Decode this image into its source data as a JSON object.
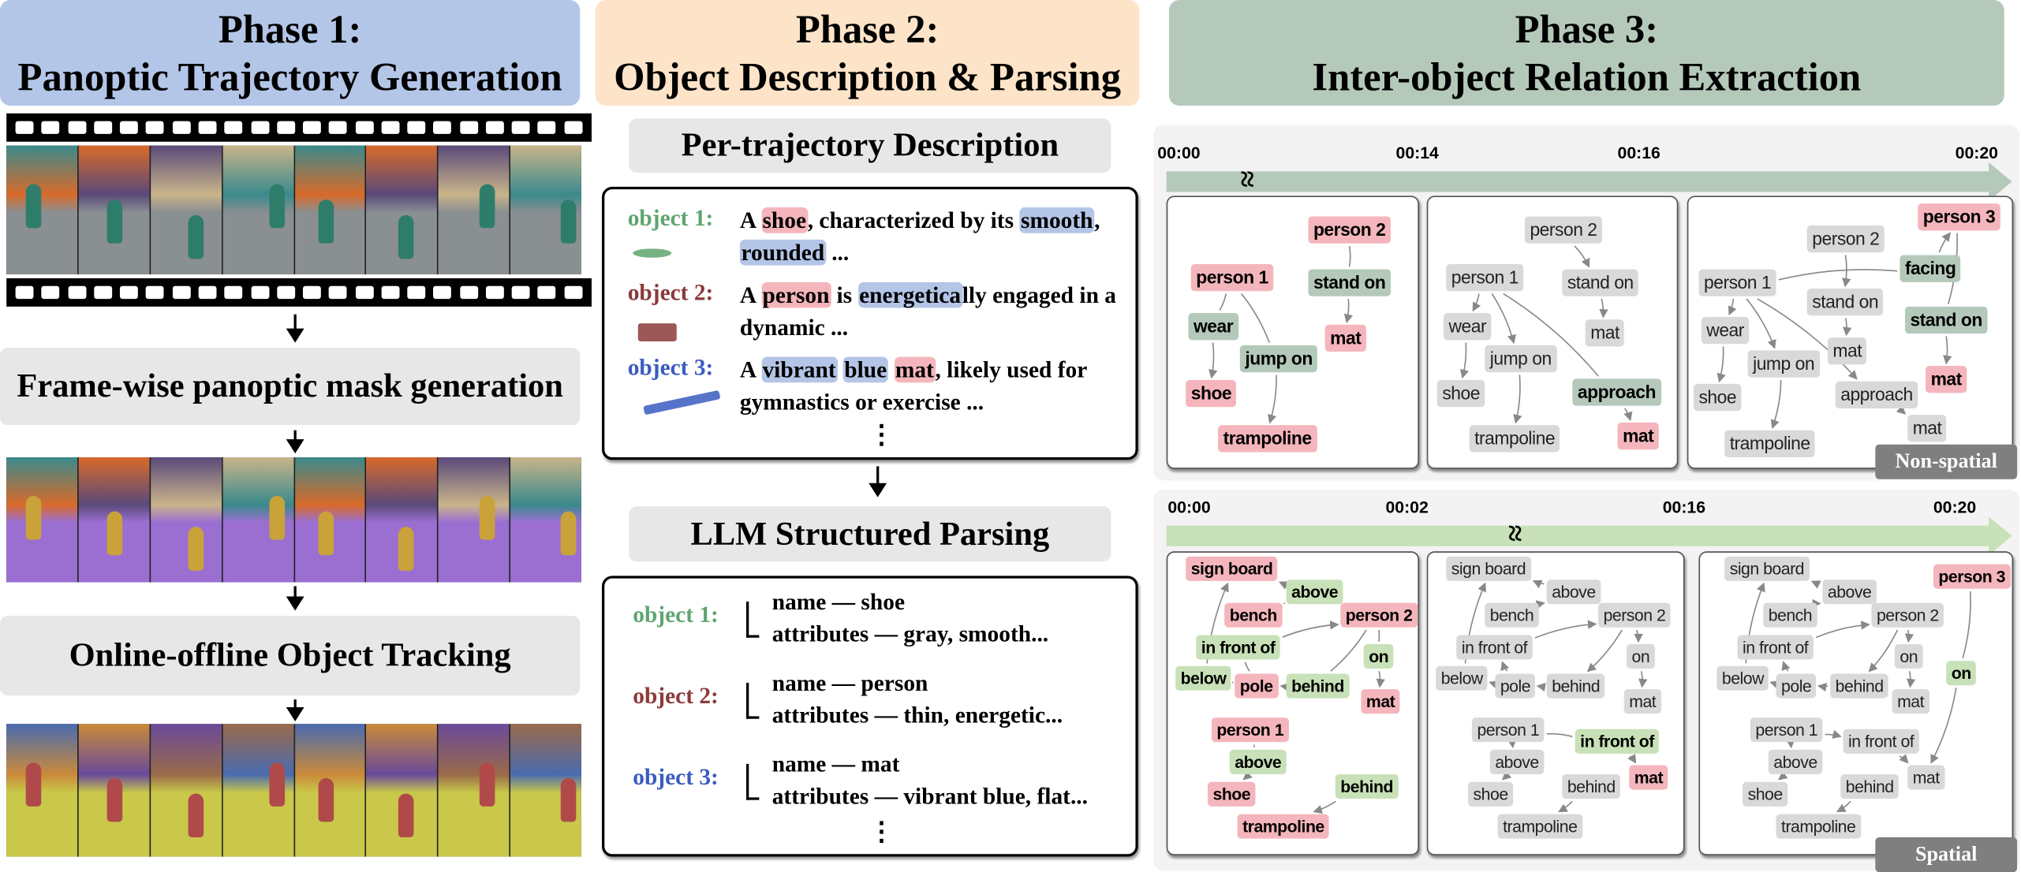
{
  "colors": {
    "phase1": "#b4c6e7",
    "phase2": "#fde4c9",
    "phase3": "#b5c9bb",
    "object_highlight": "#f4b6bc",
    "attribute_highlight": "#b4c6e7",
    "object1": "#5fa56f",
    "object2": "#8b3a3a",
    "object3": "#3a5bc0",
    "timeline_top": "#b5c9bb",
    "timeline_bottom": "#c8e1b8"
  },
  "phase1": {
    "title_line1": "Phase 1:",
    "title_line2": "Panoptic Trajectory Generation",
    "step1": "Frame-wise panoptic mask generation",
    "step2": "Online-offline Object Tracking"
  },
  "phase2": {
    "title_line1": "Phase 2:",
    "title_line2": "Object Description & Parsing",
    "desc_title": "Per-trajectory Description",
    "parse_title": "LLM Structured Parsing",
    "descriptions": [
      {
        "label": "object 1:",
        "lines": [
          [
            {
              "t": "A "
            },
            {
              "t": "shoe",
              "h": "object"
            },
            {
              "t": ", characterized by its "
            },
            {
              "t": "smooth",
              "h": "attribute"
            },
            {
              "t": ","
            }
          ],
          [
            {
              "t": "rounded",
              "h": "attribute"
            },
            {
              "t": " ..."
            }
          ]
        ]
      },
      {
        "label": "object 2:",
        "lines": [
          [
            {
              "t": "A "
            },
            {
              "t": "person",
              "h": "object"
            },
            {
              "t": " is "
            },
            {
              "t": "energetica",
              "h": "attribute"
            },
            {
              "t": "lly engaged in a"
            }
          ],
          [
            {
              "t": "dynamic ..."
            }
          ]
        ]
      },
      {
        "label": "object 3:",
        "lines": [
          [
            {
              "t": "A "
            },
            {
              "t": "vibrant",
              "h": "attribute"
            },
            {
              "t": " "
            },
            {
              "t": "blue",
              "h": "attribute"
            },
            {
              "t": " "
            },
            {
              "t": "mat",
              "h": "object"
            },
            {
              "t": ", likely used for"
            }
          ],
          [
            {
              "t": "gymnastics or exercise ..."
            }
          ]
        ]
      }
    ],
    "ellipsis": "⋮",
    "parsed": [
      {
        "label": "object 1:",
        "name": "name — shoe",
        "attributes": "attributes — gray, smooth..."
      },
      {
        "label": "object 2:",
        "name": "name — person",
        "attributes": "attributes — thin, energetic..."
      },
      {
        "label": "object 3:",
        "name": "name — mat",
        "attributes": "attributes — vibrant blue, flat..."
      }
    ]
  },
  "phase3": {
    "title_line1": "Phase 3:",
    "title_line2": "Inter-object Relation Extraction",
    "break_mark": "≈",
    "timeline_top": [
      "00:00",
      "00:14",
      "00:16",
      "00:20"
    ],
    "timeline_bottom": [
      "00:00",
      "00:02",
      "00:16",
      "00:20"
    ],
    "badge_top": "Non-spatial",
    "badge_bottom": "Spatial",
    "graphs": [
      {
        "nodes": [
          {
            "label": "person 1",
            "state": "object"
          },
          {
            "label": "person 2",
            "state": "object"
          },
          {
            "label": "wear",
            "state": "relation"
          },
          {
            "label": "jump on",
            "state": "relation"
          },
          {
            "label": "stand on",
            "state": "relation"
          },
          {
            "label": "shoe",
            "state": "object"
          },
          {
            "label": "trampoline",
            "state": "object"
          },
          {
            "label": "mat",
            "state": "object"
          }
        ],
        "edges": [
          [
            0,
            2
          ],
          [
            2,
            5
          ],
          [
            0,
            3
          ],
          [
            3,
            6
          ],
          [
            1,
            4
          ],
          [
            4,
            7
          ]
        ]
      },
      {
        "nodes": [
          {
            "label": "person 1",
            "state": "inactive"
          },
          {
            "label": "person 2",
            "state": "inactive"
          },
          {
            "label": "wear",
            "state": "inactive"
          },
          {
            "label": "jump on",
            "state": "inactive"
          },
          {
            "label": "stand on",
            "state": "inactive"
          },
          {
            "label": "shoe",
            "state": "inactive"
          },
          {
            "label": "trampoline",
            "state": "inactive"
          },
          {
            "label": "mat",
            "state": "inactive"
          },
          {
            "label": "approach",
            "state": "relation"
          },
          {
            "label": "mat",
            "state": "object"
          }
        ],
        "edges": [
          [
            0,
            2
          ],
          [
            2,
            5
          ],
          [
            0,
            3
          ],
          [
            3,
            6
          ],
          [
            1,
            4
          ],
          [
            4,
            7
          ],
          [
            0,
            8
          ],
          [
            8,
            9
          ]
        ]
      },
      {
        "nodes": [
          {
            "label": "person 1",
            "state": "inactive"
          },
          {
            "label": "person 2",
            "state": "inactive"
          },
          {
            "label": "person 3",
            "state": "object"
          },
          {
            "label": "facing",
            "state": "relation"
          },
          {
            "label": "wear",
            "state": "inactive"
          },
          {
            "label": "jump on",
            "state": "inactive"
          },
          {
            "label": "stand on",
            "state": "inactive"
          },
          {
            "label": "stand on",
            "state": "relation"
          },
          {
            "label": "shoe",
            "state": "inactive"
          },
          {
            "label": "trampoline",
            "state": "inactive"
          },
          {
            "label": "mat",
            "state": "inactive"
          },
          {
            "label": "mat",
            "state": "object"
          },
          {
            "label": "approach",
            "state": "inactive"
          },
          {
            "label": "mat",
            "state": "inactive"
          }
        ],
        "edges": [
          [
            0,
            3
          ],
          [
            3,
            2
          ],
          [
            0,
            4
          ],
          [
            4,
            8
          ],
          [
            0,
            5
          ],
          [
            5,
            9
          ],
          [
            1,
            6
          ],
          [
            6,
            10
          ],
          [
            2,
            7
          ],
          [
            7,
            11
          ],
          [
            0,
            12
          ],
          [
            12,
            13
          ]
        ]
      },
      {
        "nodes": [
          {
            "label": "sign board",
            "state": "object"
          },
          {
            "label": "above",
            "state": "relation2"
          },
          {
            "label": "bench",
            "state": "object"
          },
          {
            "label": "person 2",
            "state": "object"
          },
          {
            "label": "in front of",
            "state": "relation2"
          },
          {
            "label": "on",
            "state": "relation2"
          },
          {
            "label": "below",
            "state": "relation2"
          },
          {
            "label": "pole",
            "state": "object"
          },
          {
            "label": "behind",
            "state": "relation2"
          },
          {
            "label": "mat",
            "state": "object"
          },
          {
            "label": "person 1",
            "state": "object"
          },
          {
            "label": "above",
            "state": "relation2"
          },
          {
            "label": "behind",
            "state": "relation2"
          },
          {
            "label": "shoe",
            "state": "object"
          },
          {
            "label": "trampoline",
            "state": "object"
          }
        ],
        "edges": [
          [
            2,
            1
          ],
          [
            1,
            0
          ],
          [
            7,
            4
          ],
          [
            4,
            3
          ],
          [
            7,
            6
          ],
          [
            6,
            0
          ],
          [
            3,
            5
          ],
          [
            5,
            9
          ],
          [
            3,
            8
          ],
          [
            8,
            7
          ],
          [
            10,
            11
          ],
          [
            11,
            13
          ],
          [
            12,
            14
          ]
        ]
      },
      {
        "nodes": [
          {
            "label": "sign board",
            "state": "inactive"
          },
          {
            "label": "above",
            "state": "inactive"
          },
          {
            "label": "bench",
            "state": "inactive"
          },
          {
            "label": "person 2",
            "state": "inactive"
          },
          {
            "label": "in front of",
            "state": "inactive"
          },
          {
            "label": "on",
            "state": "inactive"
          },
          {
            "label": "below",
            "state": "inactive"
          },
          {
            "label": "pole",
            "state": "inactive"
          },
          {
            "label": "behind",
            "state": "inactive"
          },
          {
            "label": "mat",
            "state": "inactive"
          },
          {
            "label": "person 1",
            "state": "inactive"
          },
          {
            "label": "above",
            "state": "inactive"
          },
          {
            "label": "behind",
            "state": "inactive"
          },
          {
            "label": "shoe",
            "state": "inactive"
          },
          {
            "label": "trampoline",
            "state": "inactive"
          },
          {
            "label": "in front of",
            "state": "relation2"
          },
          {
            "label": "mat",
            "state": "object"
          }
        ],
        "edges": [
          [
            2,
            1
          ],
          [
            1,
            0
          ],
          [
            7,
            4
          ],
          [
            4,
            3
          ],
          [
            7,
            6
          ],
          [
            6,
            0
          ],
          [
            3,
            5
          ],
          [
            5,
            9
          ],
          [
            3,
            8
          ],
          [
            8,
            7
          ],
          [
            10,
            11
          ],
          [
            11,
            13
          ],
          [
            12,
            14
          ],
          [
            10,
            15
          ],
          [
            15,
            16
          ]
        ]
      },
      {
        "nodes": [
          {
            "label": "sign board",
            "state": "inactive"
          },
          {
            "label": "above",
            "state": "inactive"
          },
          {
            "label": "bench",
            "state": "inactive"
          },
          {
            "label": "person 2",
            "state": "inactive"
          },
          {
            "label": "in front of",
            "state": "inactive"
          },
          {
            "label": "on",
            "state": "inactive"
          },
          {
            "label": "below",
            "state": "inactive"
          },
          {
            "label": "pole",
            "state": "inactive"
          },
          {
            "label": "behind",
            "state": "inactive"
          },
          {
            "label": "mat",
            "state": "inactive"
          },
          {
            "label": "person 1",
            "state": "inactive"
          },
          {
            "label": "above",
            "state": "inactive"
          },
          {
            "label": "behind",
            "state": "inactive"
          },
          {
            "label": "shoe",
            "state": "inactive"
          },
          {
            "label": "trampoline",
            "state": "inactive"
          },
          {
            "label": "person 3",
            "state": "object"
          },
          {
            "label": "on",
            "state": "relation2"
          },
          {
            "label": "in front of",
            "state": "inactive"
          },
          {
            "label": "mat",
            "state": "inactive"
          }
        ],
        "edges": [
          [
            2,
            1
          ],
          [
            1,
            0
          ],
          [
            7,
            4
          ],
          [
            4,
            3
          ],
          [
            7,
            6
          ],
          [
            6,
            0
          ],
          [
            3,
            5
          ],
          [
            5,
            9
          ],
          [
            3,
            8
          ],
          [
            8,
            7
          ],
          [
            10,
            11
          ],
          [
            11,
            13
          ],
          [
            12,
            14
          ],
          [
            15,
            16
          ],
          [
            16,
            18
          ],
          [
            10,
            17
          ],
          [
            17,
            18
          ]
        ]
      }
    ]
  }
}
